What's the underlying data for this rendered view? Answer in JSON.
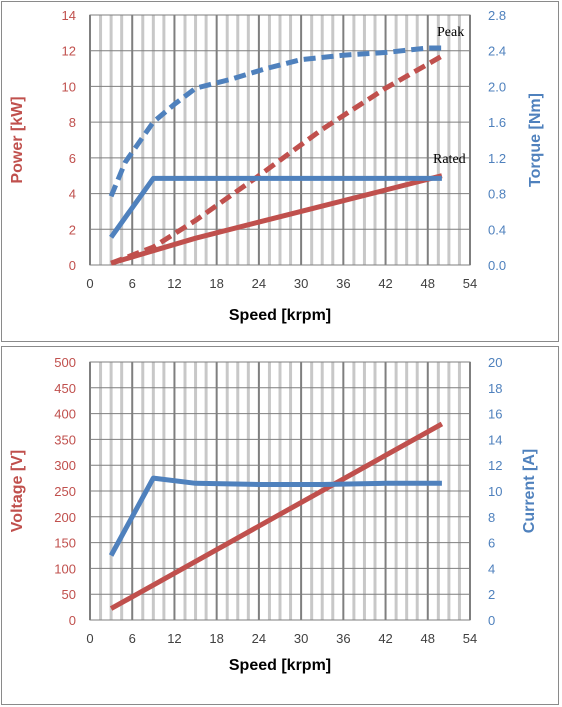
{
  "colors": {
    "red": "#c0504d",
    "blue": "#4f81bd",
    "grid_dark": "#7f7f7f",
    "grid_light": "#c8c8c8",
    "tick_dark": "#404040"
  },
  "chart_data": [
    {
      "type": "line",
      "xlabel": "Speed [krpm]",
      "ylabel_left": "Power [kW]",
      "ylabel_right": "Torque [Nm]",
      "xlim": [
        0,
        54
      ],
      "ylim_left": [
        0,
        14
      ],
      "ylim_right": [
        0,
        2.8
      ],
      "x_ticks": [
        "0",
        "6",
        "12",
        "18",
        "24",
        "30",
        "36",
        "42",
        "48",
        "54"
      ],
      "y_left_ticks": [
        "0",
        "2",
        "4",
        "6",
        "8",
        "10",
        "12",
        "14"
      ],
      "y_right_ticks": [
        "0.0",
        "0.4",
        "0.8",
        "1.2",
        "1.6",
        "2.0",
        "2.4",
        "2.8"
      ],
      "annotations": [
        "Peak",
        "Rated"
      ],
      "grid": true,
      "series": [
        {
          "axis": "left",
          "color": "red",
          "style": "dashed",
          "x": [
            3,
            9,
            15,
            24,
            33,
            42,
            50
          ],
          "y": [
            0.1,
            1.0,
            2.5,
            5.0,
            7.6,
            9.9,
            11.7
          ]
        },
        {
          "axis": "left",
          "color": "red",
          "style": "solid",
          "x": [
            3,
            9,
            15,
            24,
            33,
            42,
            50
          ],
          "y": [
            0.1,
            0.8,
            1.5,
            2.4,
            3.3,
            4.2,
            5.0
          ]
        },
        {
          "axis": "right",
          "color": "blue",
          "style": "dashed",
          "x": [
            3,
            5,
            9,
            12,
            15,
            20,
            25,
            30,
            36,
            42,
            48,
            50
          ],
          "y": [
            0.77,
            1.15,
            1.6,
            1.8,
            1.98,
            2.08,
            2.2,
            2.3,
            2.35,
            2.38,
            2.43,
            2.43
          ]
        },
        {
          "axis": "right",
          "color": "blue",
          "style": "solid",
          "x": [
            3,
            9,
            50
          ],
          "y": [
            0.31,
            0.97,
            0.97
          ]
        }
      ]
    },
    {
      "type": "line",
      "xlabel": "Speed [krpm]",
      "ylabel_left": "Voltage [V]",
      "ylabel_right": "Current [A]",
      "xlim": [
        0,
        54
      ],
      "ylim_left": [
        0,
        500
      ],
      "ylim_right": [
        0,
        20
      ],
      "x_ticks": [
        "0",
        "6",
        "12",
        "18",
        "24",
        "30",
        "36",
        "42",
        "48",
        "54"
      ],
      "y_left_ticks": [
        "0",
        "50",
        "100",
        "150",
        "200",
        "250",
        "300",
        "350",
        "400",
        "450",
        "500"
      ],
      "y_right_ticks": [
        "0",
        "2",
        "4",
        "6",
        "8",
        "10",
        "12",
        "14",
        "16",
        "18",
        "20"
      ],
      "grid": true,
      "series": [
        {
          "axis": "left",
          "color": "red",
          "style": "solid",
          "x": [
            3,
            50
          ],
          "y": [
            22,
            380
          ]
        },
        {
          "axis": "right",
          "color": "blue",
          "style": "solid",
          "x": [
            3,
            9,
            15,
            24,
            33,
            42,
            50
          ],
          "y": [
            5.0,
            11.0,
            10.6,
            10.5,
            10.5,
            10.6,
            10.6
          ]
        }
      ]
    }
  ]
}
